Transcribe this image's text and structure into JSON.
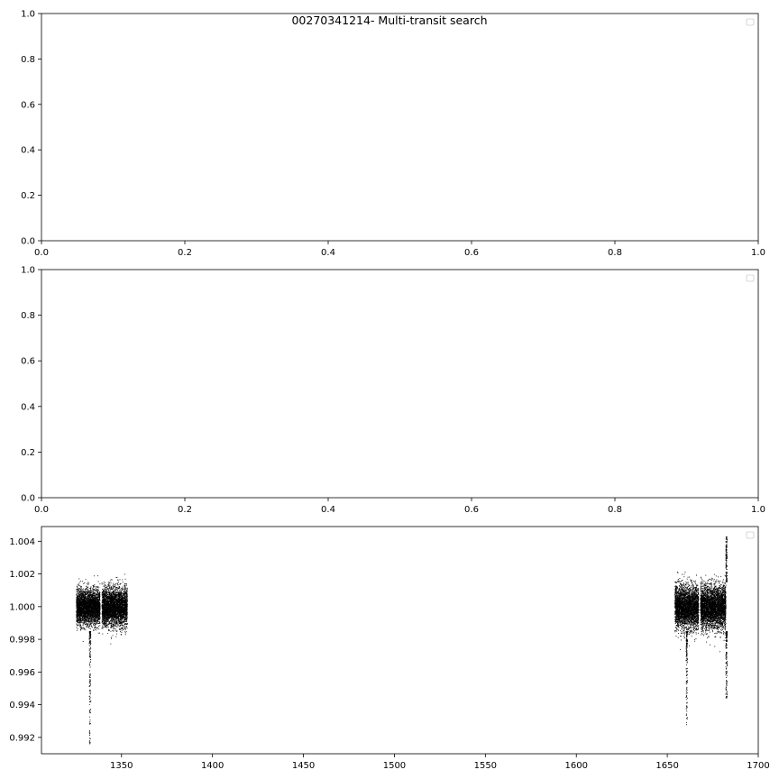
{
  "title": "00270341214-  Multi-transit search",
  "chart_data": [
    {
      "type": "scatter",
      "title": "",
      "xlabel": "",
      "ylabel": "",
      "xlim": [
        0,
        1
      ],
      "ylim": [
        0,
        1
      ],
      "xticks": [
        "0.0",
        "0.2",
        "0.4",
        "0.6",
        "0.8",
        "1.0"
      ],
      "yticks": [
        "0.0",
        "0.2",
        "0.4",
        "0.6",
        "0.8",
        "1.0"
      ],
      "legend": "upper-right (empty)",
      "grid": false,
      "series": []
    },
    {
      "type": "scatter",
      "title": "",
      "xlabel": "",
      "ylabel": "",
      "xlim": [
        0,
        1
      ],
      "ylim": [
        0,
        1
      ],
      "xticks": [
        "0.0",
        "0.2",
        "0.4",
        "0.6",
        "0.8",
        "1.0"
      ],
      "yticks": [
        "0.0",
        "0.2",
        "0.4",
        "0.6",
        "0.8",
        "1.0"
      ],
      "legend": "upper-right (empty)",
      "grid": false,
      "series": []
    },
    {
      "type": "scatter",
      "title": "",
      "xlabel": "",
      "ylabel": "",
      "xlim": [
        1306,
        1700
      ],
      "ylim": [
        0.991,
        0.0049
      ],
      "xticks": [
        "1350",
        "1400",
        "1450",
        "1500",
        "1550",
        "1600",
        "1650",
        "1700"
      ],
      "yticks": [
        "0.992",
        "0.994",
        "0.996",
        "0.998",
        "1.000",
        "1.002",
        "1.004"
      ],
      "legend": "upper-right (empty)",
      "grid": false,
      "color": "#000000",
      "baseline_flux": 1.0,
      "segments": [
        {
          "x_start": 1325,
          "x_end": 1338,
          "scatter_low": 0.9983,
          "scatter_high": 1.0018
        },
        {
          "x_start": 1339,
          "x_end": 1353,
          "scatter_low": 0.9982,
          "scatter_high": 1.002
        },
        {
          "x_start": 1654,
          "x_end": 1667,
          "scatter_low": 0.9982,
          "scatter_high": 1.0025
        },
        {
          "x_start": 1668,
          "x_end": 1682,
          "scatter_low": 0.9982,
          "scatter_high": 1.0025
        }
      ],
      "transit_dips": [
        {
          "x": 1332.5,
          "min_flux": 0.9916
        },
        {
          "x": 1660.5,
          "min_flux": 0.9928
        },
        {
          "x": 1682.3,
          "min_flux": 0.9943
        }
      ],
      "flare": {
        "x": 1682.3,
        "max_flux": 1.0043
      }
    }
  ]
}
